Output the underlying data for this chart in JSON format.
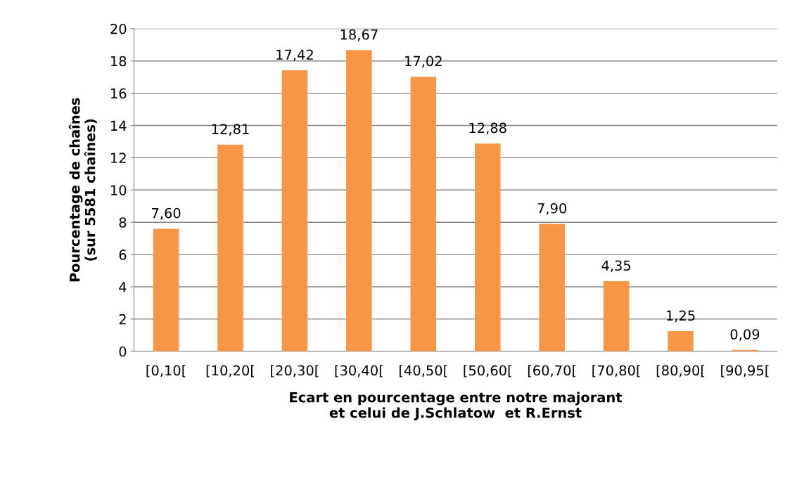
{
  "chart_data": {
    "type": "bar",
    "categories": [
      "[0,10[",
      "[10,20[",
      "[20,30[",
      "[30,40[",
      "[40,50[",
      "[50,60[",
      "[60,70[",
      "[70,80[",
      "[80,90[",
      "[90,95["
    ],
    "values": [
      7.6,
      12.81,
      17.42,
      18.67,
      17.02,
      12.88,
      7.9,
      4.35,
      1.25,
      0.09
    ],
    "value_labels": [
      "7,60",
      "12,81",
      "17,42",
      "18,67",
      "17,02",
      "12,88",
      "7,90",
      "4,35",
      "1,25",
      "0,09"
    ],
    "color": "#f79646",
    "xlabel": "Ecart en pourcentage entre notre majorant\net celui de J.Schlatow  et R.Ernst",
    "ylabel": "Pourcentage de chaînes\n(sur 5581 chaînes)",
    "ylim": [
      0,
      20
    ],
    "yticks": [
      0,
      2,
      4,
      6,
      8,
      10,
      12,
      14,
      16,
      18,
      20
    ],
    "grid": "y",
    "legend": false
  }
}
